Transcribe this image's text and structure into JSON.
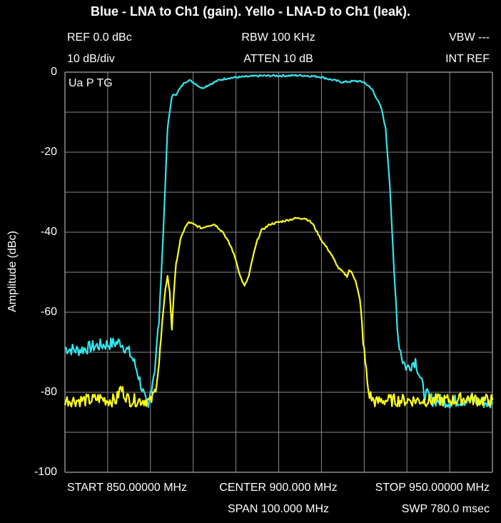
{
  "header": {
    "title": "Blue - LNA to Ch1 (gain). Yello - LNA-D to Ch1 (leak).",
    "ref": "REF 0.0 dBc",
    "rbw": "RBW 100 KHz",
    "vbw": "VBW ---",
    "scale": "10 dB/div",
    "atten": "ATTEN 10 dB",
    "intref": "INT REF",
    "mode": "Ua P TG"
  },
  "footer": {
    "start": "START 850.00000 MHz",
    "center": "CENTER 900.000 MHz",
    "stop": "STOP 950.00000 MHz",
    "span": "SPAN 100.000 MHz",
    "swp": "SWP 780.0 msec"
  },
  "chart_data": {
    "type": "line",
    "title": "Blue - LNA to Ch1 (gain). Yello - LNA-D to Ch1 (leak).",
    "xlabel": "",
    "ylabel": "Amplitude (dBc)",
    "xlim": [
      850,
      950
    ],
    "ylim": [
      -100,
      0
    ],
    "yticks": [
      0,
      -20,
      -40,
      -60,
      -80,
      -100
    ],
    "ytick_labels": [
      "0",
      "-20",
      "-40",
      "-60",
      "-80",
      "-100"
    ],
    "grid": true,
    "colors": {
      "background": "#000000",
      "grid": "#8c8c8c",
      "gain": "#33e6ee",
      "leak": "#ffff1a"
    },
    "series": [
      {
        "color": "#33e6ee",
        "x": [
          850,
          853,
          857,
          860,
          863,
          865,
          866,
          867,
          868,
          869,
          869.5,
          870,
          871,
          872,
          873,
          874,
          875,
          876,
          877,
          878,
          879,
          880,
          882,
          884,
          886,
          888,
          890,
          893,
          896,
          900,
          905,
          908,
          910,
          912,
          915,
          918,
          920,
          922,
          924,
          925,
          926,
          927,
          928,
          929,
          930,
          931,
          932,
          933,
          934,
          935,
          936,
          937,
          938,
          940,
          942,
          945,
          948,
          950
        ],
        "y": [
          -69,
          -69.5,
          -68.5,
          -68,
          -67.5,
          -70,
          -72,
          -75,
          -79,
          -83,
          -84.5,
          -80,
          -74,
          -62,
          -40,
          -14,
          -6,
          -5.5,
          -4,
          -2.5,
          -2,
          -2.5,
          -4,
          -3,
          -2,
          -1.5,
          -1.3,
          -1.1,
          -0.9,
          -0.9,
          -0.8,
          -1,
          -1.2,
          -1.8,
          -2.5,
          -2.2,
          -2.5,
          -4.5,
          -9,
          -14,
          -28,
          -50,
          -67,
          -72,
          -74,
          -73,
          -72,
          -76,
          -80,
          -81,
          -82,
          -82,
          -82,
          -82.5,
          -82,
          -82,
          -82.5,
          -83
        ]
      },
      {
        "color": "#ffff1a",
        "x": [
          850,
          853,
          856,
          858,
          860,
          862,
          863,
          865,
          867,
          869,
          870,
          871,
          872,
          873,
          873.5,
          874,
          874.5,
          875,
          875.5,
          876,
          877,
          878,
          879,
          880,
          881,
          882,
          883,
          885,
          887,
          889,
          890,
          891,
          892,
          893,
          894,
          895,
          896,
          898,
          900,
          902,
          904,
          906,
          907,
          908,
          909,
          910,
          912,
          914,
          916,
          916.5,
          917,
          918,
          919,
          920,
          921,
          922,
          923,
          924,
          925,
          926,
          927,
          928,
          930,
          932,
          935,
          938,
          941,
          944,
          947,
          950
        ],
        "y": [
          -82,
          -82,
          -82,
          -81.5,
          -82,
          -82,
          -79,
          -82,
          -82,
          -82,
          -82.5,
          -80,
          -73,
          -60,
          -54,
          -51,
          -55,
          -64,
          -55,
          -48,
          -42,
          -39,
          -37.5,
          -38,
          -38.5,
          -39,
          -38.5,
          -38,
          -40,
          -44,
          -47,
          -51,
          -53.5,
          -51,
          -46,
          -42,
          -39.5,
          -38,
          -37.5,
          -37,
          -36.5,
          -36.5,
          -37,
          -38,
          -40,
          -42,
          -45,
          -49,
          -51,
          -49.5,
          -50,
          -52,
          -57,
          -70,
          -80,
          -82,
          -82.5,
          -82,
          -82,
          -82,
          -82,
          -82,
          -82,
          -82,
          -82,
          -82,
          -82,
          -81.5,
          -82,
          -82
        ]
      }
    ]
  }
}
